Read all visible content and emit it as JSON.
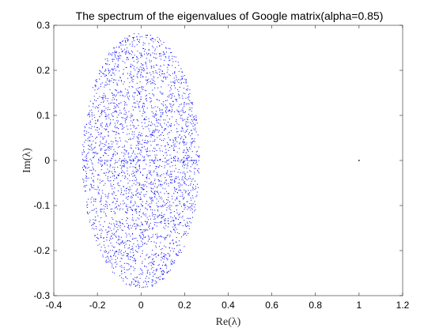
{
  "chart_data": {
    "type": "scatter",
    "title": "The spectrum of the eigenvalues of Google matrix(alpha=0.85)",
    "xlabel": "Re(λ)",
    "ylabel": "Im(λ)",
    "xlim": [
      -0.4,
      1.2
    ],
    "ylim": [
      -0.3,
      0.3
    ],
    "xticks": [
      -0.4,
      -0.2,
      0,
      0.2,
      0.4,
      0.6,
      0.8,
      1,
      1.2
    ],
    "xtick_labels": [
      "-0.4",
      "-0.2",
      "0",
      "0.2",
      "0.4",
      "0.6",
      "0.8",
      "1",
      "1.2"
    ],
    "yticks": [
      -0.3,
      -0.2,
      -0.1,
      0,
      0.1,
      0.2,
      0.3
    ],
    "ytick_labels": [
      "-0.3",
      "-0.2",
      "-0.1",
      "0",
      "0.1",
      "0.2",
      "0.3"
    ],
    "grid": false,
    "series": [
      {
        "description": "bulk eigenvalues filling an ellipse",
        "color": "#0000ff",
        "shape": "ellipse-cloud",
        "center": [
          0,
          0
        ],
        "re_semi_axis": 0.27,
        "im_semi_axis": 0.285,
        "approx_count": 3000
      },
      {
        "description": "eigenvalues on the real axis",
        "color": "#0000ff",
        "shape": "real-axis-line",
        "re_range": [
          -0.27,
          0.27
        ],
        "approx_count": 60
      },
      {
        "description": "leading eigenvalue",
        "color": "#000000",
        "points": [
          [
            1,
            0
          ]
        ]
      }
    ]
  }
}
